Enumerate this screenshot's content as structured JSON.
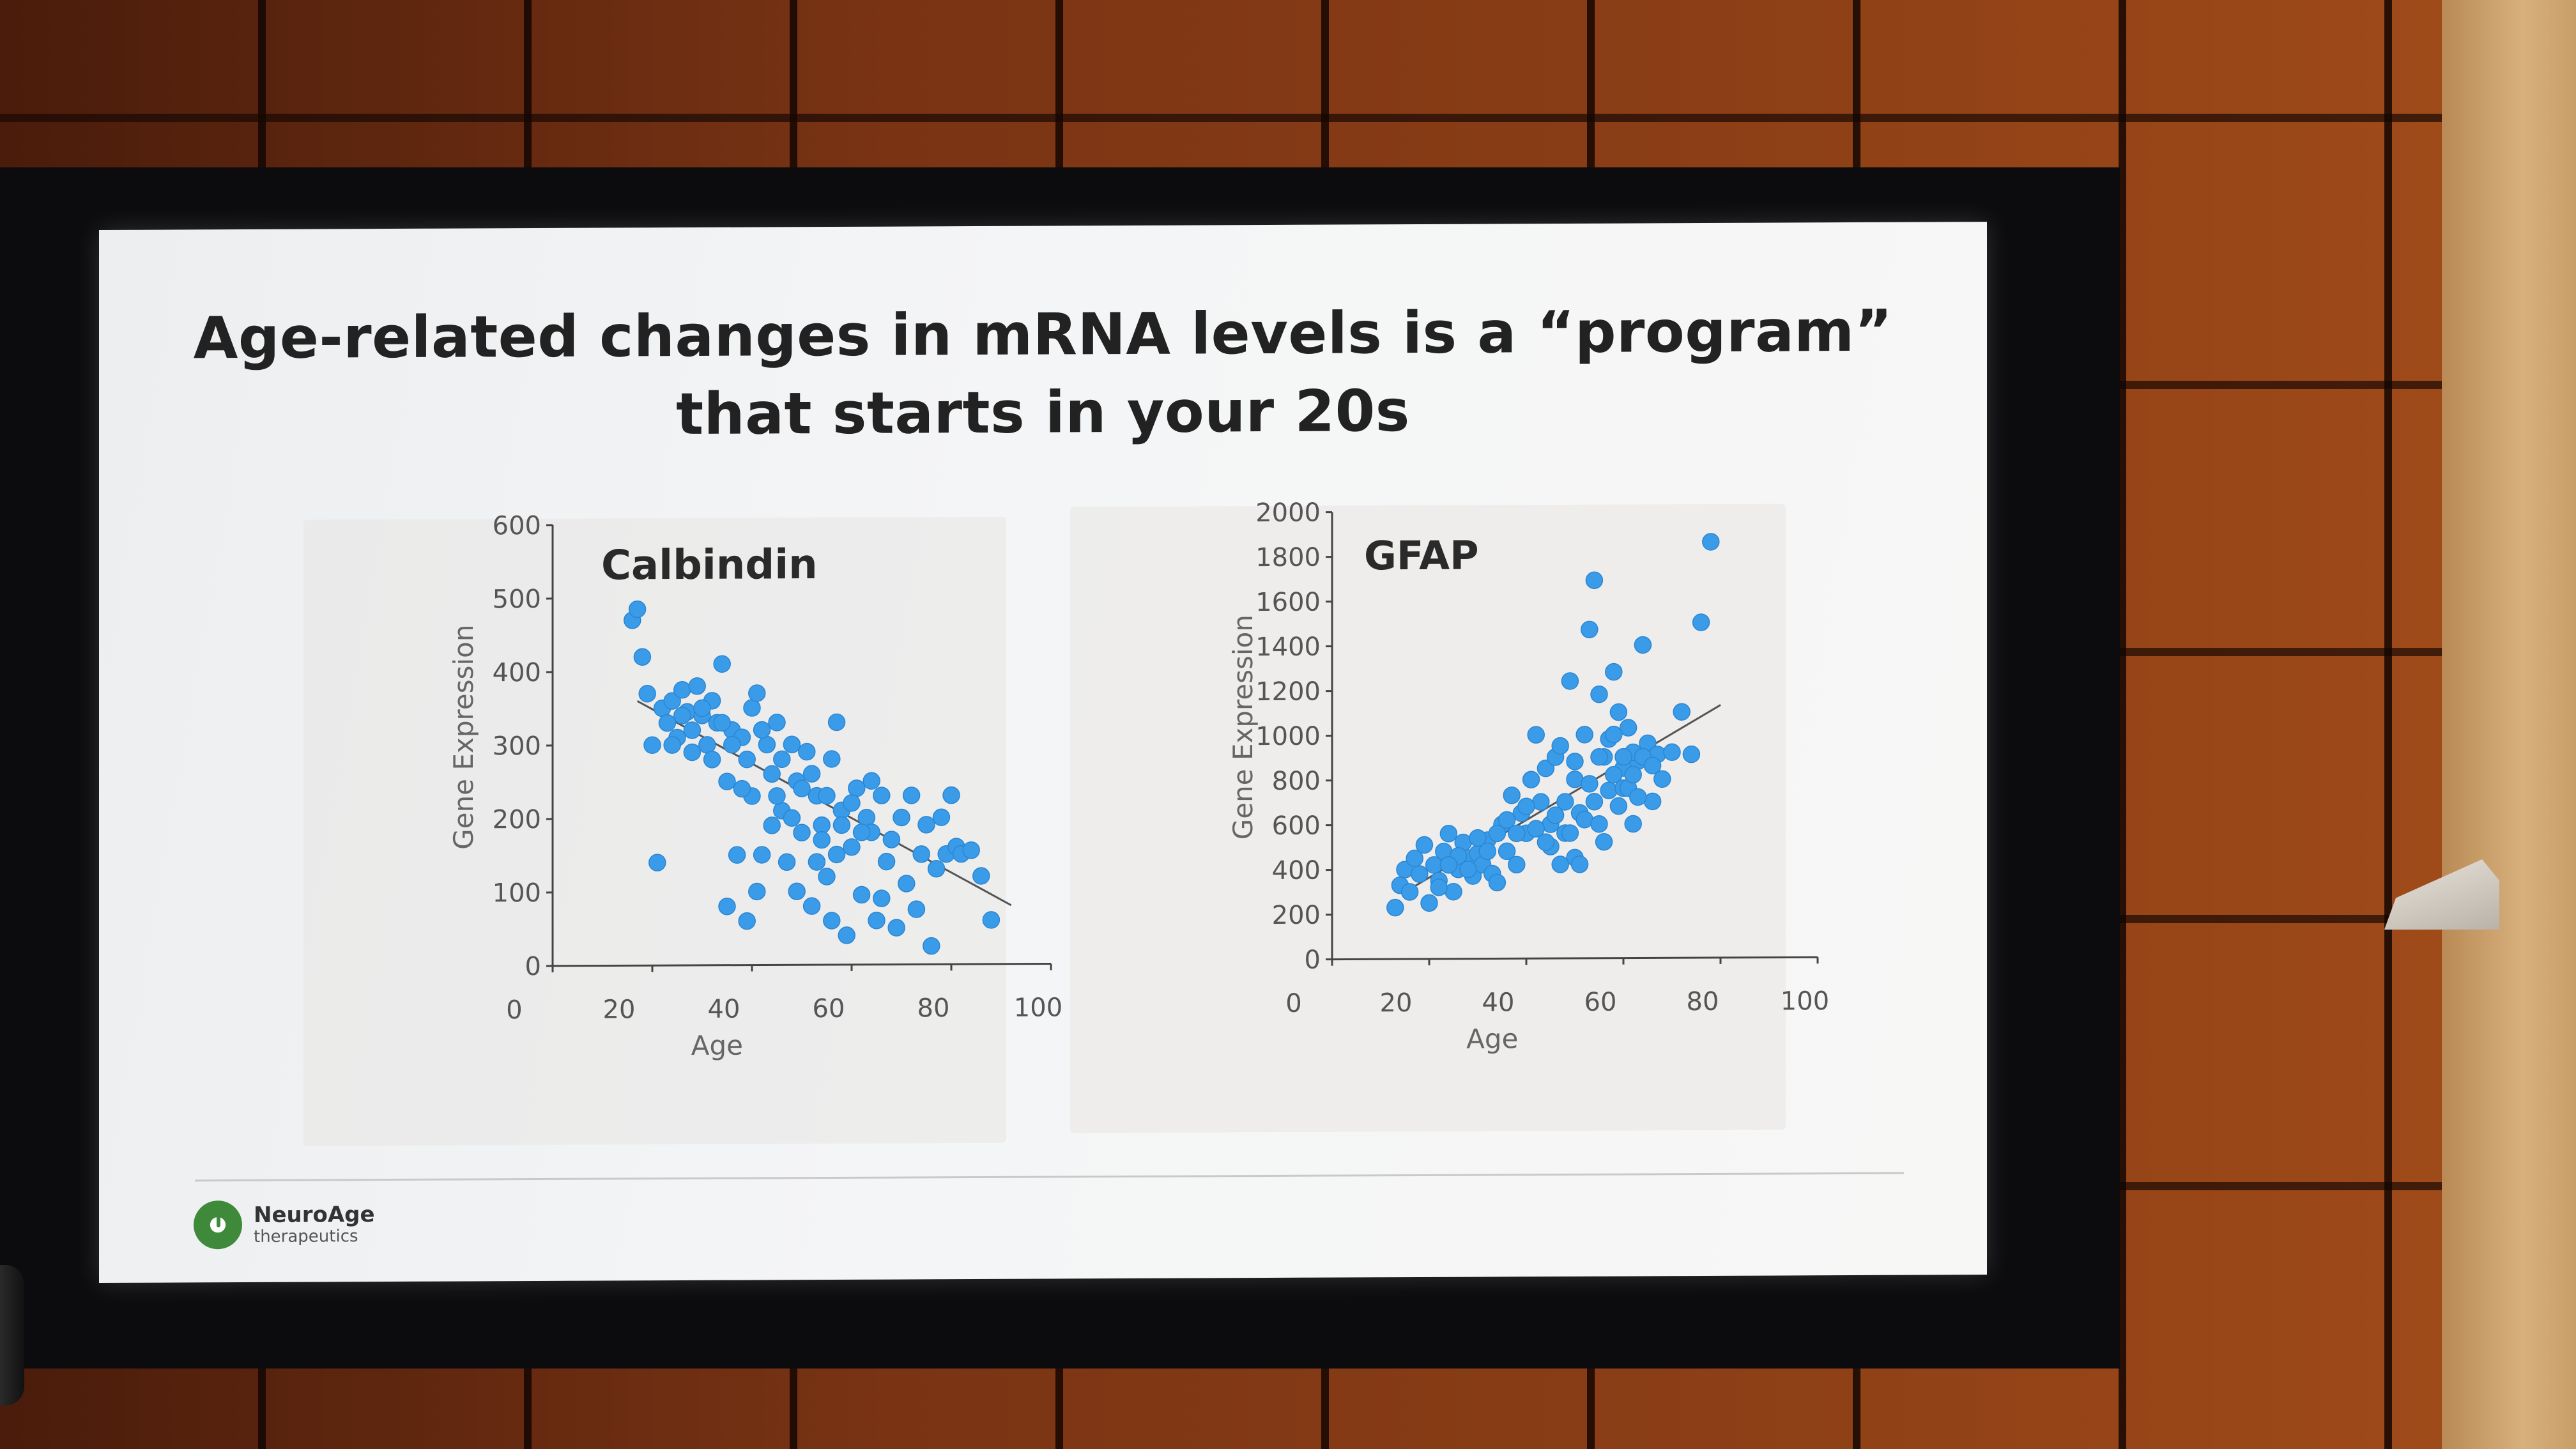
{
  "slide": {
    "title_line1": "Age-related changes in mRNA levels is a “program”",
    "title_line2": "that starts in your 20s"
  },
  "logo": {
    "name": "NeuroAge",
    "subtitle": "therapeutics"
  },
  "chart_data": [
    {
      "type": "scatter",
      "title": "Calbindin",
      "xlabel": "Age",
      "ylabel": "Gene Expression",
      "xticks": [
        "0",
        "20",
        "40",
        "60",
        "80",
        "100"
      ],
      "yticks": [
        "0",
        "100",
        "200",
        "300",
        "400",
        "500",
        "600"
      ],
      "xlim": [
        0,
        100
      ],
      "ylim": [
        0,
        600
      ],
      "color": "#3a9be8",
      "trendline": [
        [
          17,
          360
        ],
        [
          92,
          80
        ]
      ],
      "points": [
        [
          16,
          470
        ],
        [
          17,
          485
        ],
        [
          18,
          420
        ],
        [
          19,
          370
        ],
        [
          20,
          300
        ],
        [
          21,
          140
        ],
        [
          22,
          350
        ],
        [
          23,
          330
        ],
        [
          24,
          360
        ],
        [
          25,
          310
        ],
        [
          26,
          375
        ],
        [
          27,
          345
        ],
        [
          28,
          290
        ],
        [
          29,
          380
        ],
        [
          30,
          340
        ],
        [
          31,
          300
        ],
        [
          32,
          360
        ],
        [
          33,
          330
        ],
        [
          34,
          410
        ],
        [
          35,
          250
        ],
        [
          36,
          320
        ],
        [
          37,
          150
        ],
        [
          38,
          310
        ],
        [
          39,
          280
        ],
        [
          40,
          350
        ],
        [
          41,
          370
        ],
        [
          42,
          150
        ],
        [
          43,
          300
        ],
        [
          44,
          260
        ],
        [
          45,
          330
        ],
        [
          46,
          210
        ],
        [
          47,
          140
        ],
        [
          48,
          300
        ],
        [
          49,
          250
        ],
        [
          50,
          180
        ],
        [
          51,
          290
        ],
        [
          52,
          80
        ],
        [
          53,
          230
        ],
        [
          54,
          190
        ],
        [
          55,
          120
        ],
        [
          56,
          280
        ],
        [
          57,
          330
        ],
        [
          58,
          210
        ],
        [
          59,
          40
        ],
        [
          60,
          160
        ],
        [
          61,
          240
        ],
        [
          62,
          95
        ],
        [
          63,
          200
        ],
        [
          64,
          180
        ],
        [
          65,
          60
        ],
        [
          66,
          230
        ],
        [
          67,
          140
        ],
        [
          68,
          170
        ],
        [
          69,
          50
        ],
        [
          70,
          200
        ],
        [
          71,
          110
        ],
        [
          72,
          230
        ],
        [
          73,
          75
        ],
        [
          74,
          150
        ],
        [
          75,
          190
        ],
        [
          76,
          25
        ],
        [
          77,
          130
        ],
        [
          78,
          200
        ],
        [
          79,
          150
        ],
        [
          80,
          230
        ],
        [
          81,
          160
        ],
        [
          82,
          150
        ],
        [
          84,
          155
        ],
        [
          86,
          120
        ],
        [
          88,
          60
        ],
        [
          45,
          230
        ],
        [
          48,
          200
        ],
        [
          52,
          260
        ],
        [
          55,
          230
        ],
        [
          58,
          190
        ],
        [
          60,
          220
        ],
        [
          62,
          180
        ],
        [
          64,
          250
        ],
        [
          46,
          280
        ],
        [
          50,
          240
        ],
        [
          54,
          170
        ],
        [
          40,
          230
        ],
        [
          42,
          320
        ],
        [
          44,
          190
        ],
        [
          38,
          240
        ],
        [
          36,
          300
        ],
        [
          34,
          330
        ],
        [
          32,
          280
        ],
        [
          30,
          350
        ],
        [
          28,
          320
        ],
        [
          26,
          340
        ],
        [
          24,
          300
        ],
        [
          53,
          140
        ],
        [
          57,
          150
        ],
        [
          66,
          90
        ],
        [
          56,
          60
        ],
        [
          49,
          100
        ],
        [
          41,
          100
        ],
        [
          39,
          60
        ],
        [
          35,
          80
        ]
      ]
    },
    {
      "type": "scatter",
      "title": "GFAP",
      "xlabel": "Age",
      "ylabel": "Gene Expression",
      "xticks": [
        "0",
        "20",
        "40",
        "60",
        "80",
        "100"
      ],
      "yticks": [
        "0",
        "200",
        "400",
        "600",
        "800",
        "1000",
        "1200",
        "1400",
        "1600",
        "1800",
        "2000"
      ],
      "xlim": [
        0,
        100
      ],
      "ylim": [
        0,
        2000
      ],
      "color": "#3a9be8",
      "trendline": [
        [
          15,
          300
        ],
        [
          80,
          1130
        ]
      ],
      "points": [
        [
          13,
          230
        ],
        [
          14,
          330
        ],
        [
          15,
          400
        ],
        [
          16,
          300
        ],
        [
          17,
          450
        ],
        [
          18,
          380
        ],
        [
          19,
          510
        ],
        [
          20,
          250
        ],
        [
          21,
          420
        ],
        [
          22,
          350
        ],
        [
          23,
          480
        ],
        [
          24,
          560
        ],
        [
          25,
          300
        ],
        [
          26,
          400
        ],
        [
          27,
          520
        ],
        [
          28,
          450
        ],
        [
          29,
          370
        ],
        [
          30,
          470
        ],
        [
          31,
          420
        ],
        [
          32,
          530
        ],
        [
          33,
          380
        ],
        [
          34,
          340
        ],
        [
          35,
          600
        ],
        [
          36,
          480
        ],
        [
          37,
          730
        ],
        [
          38,
          420
        ],
        [
          39,
          650
        ],
        [
          40,
          560
        ],
        [
          41,
          800
        ],
        [
          42,
          1000
        ],
        [
          43,
          700
        ],
        [
          44,
          850
        ],
        [
          45,
          600
        ],
        [
          46,
          900
        ],
        [
          47,
          950
        ],
        [
          48,
          700
        ],
        [
          49,
          1240
        ],
        [
          50,
          800
        ],
        [
          51,
          650
        ],
        [
          52,
          1000
        ],
        [
          53,
          1470
        ],
        [
          54,
          1690
        ],
        [
          55,
          1180
        ],
        [
          56,
          900
        ],
        [
          57,
          750
        ],
        [
          58,
          1280
        ],
        [
          59,
          1100
        ],
        [
          60,
          850
        ],
        [
          61,
          1030
        ],
        [
          62,
          600
        ],
        [
          63,
          880
        ],
        [
          64,
          1400
        ],
        [
          65,
          960
        ],
        [
          66,
          700
        ],
        [
          67,
          910
        ],
        [
          68,
          800
        ],
        [
          70,
          920
        ],
        [
          72,
          1100
        ],
        [
          74,
          910
        ],
        [
          76,
          1500
        ],
        [
          78,
          1860
        ],
        [
          45,
          500
        ],
        [
          48,
          560
        ],
        [
          50,
          450
        ],
        [
          52,
          620
        ],
        [
          54,
          700
        ],
        [
          56,
          520
        ],
        [
          58,
          820
        ],
        [
          60,
          760
        ],
        [
          62,
          920
        ],
        [
          46,
          640
        ],
        [
          44,
          520
        ],
        [
          42,
          580
        ],
        [
          40,
          680
        ],
        [
          38,
          560
        ],
        [
          36,
          620
        ],
        [
          34,
          560
        ],
        [
          32,
          480
        ],
        [
          30,
          540
        ],
        [
          28,
          400
        ],
        [
          26,
          460
        ],
        [
          24,
          420
        ],
        [
          22,
          320
        ],
        [
          50,
          880
        ],
        [
          53,
          780
        ],
        [
          55,
          600
        ],
        [
          57,
          980
        ],
        [
          59,
          680
        ],
        [
          61,
          760
        ],
        [
          63,
          720
        ],
        [
          47,
          420
        ],
        [
          49,
          560
        ],
        [
          51,
          420
        ],
        [
          55,
          900
        ],
        [
          58,
          1000
        ],
        [
          60,
          900
        ],
        [
          62,
          820
        ],
        [
          64,
          900
        ],
        [
          66,
          860
        ]
      ]
    }
  ]
}
